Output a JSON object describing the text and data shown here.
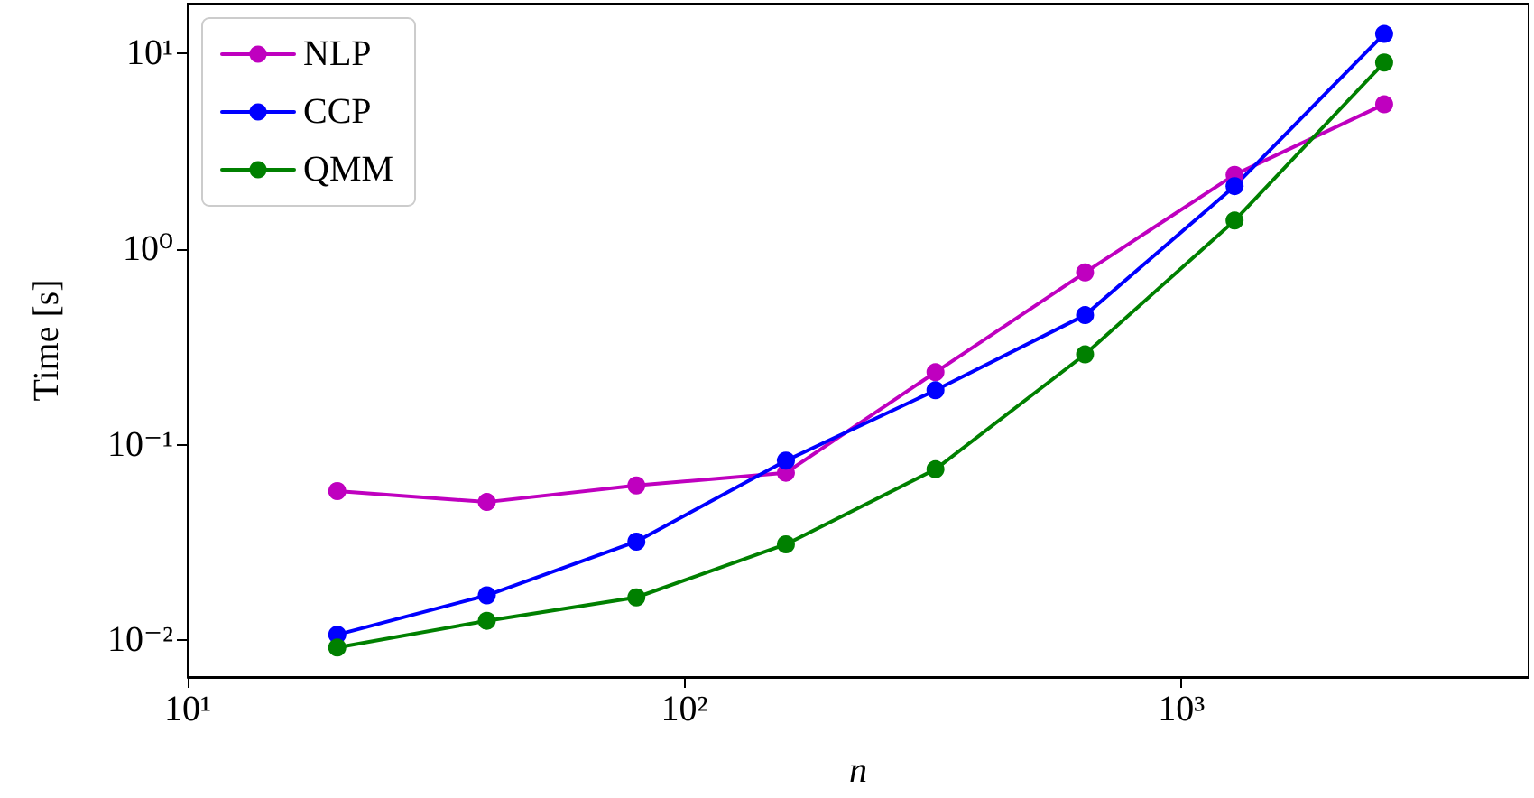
{
  "chart_data": {
    "type": "line",
    "xlabel": "n",
    "ylabel": "Time [s]",
    "x": [
      20,
      40,
      80,
      160,
      320,
      640,
      1280,
      2560
    ],
    "series": [
      {
        "name": "NLP",
        "color": "#bf00bf",
        "values": [
          0.058,
          0.051,
          0.062,
          0.072,
          0.235,
          0.76,
          2.4,
          5.5
        ]
      },
      {
        "name": "CCP",
        "color": "#0000ff",
        "values": [
          0.0107,
          0.017,
          0.032,
          0.083,
          0.19,
          0.46,
          2.1,
          12.6
        ]
      },
      {
        "name": "QMM",
        "color": "#008000",
        "values": [
          0.0092,
          0.0126,
          0.0166,
          0.031,
          0.075,
          0.29,
          1.4,
          9.0
        ]
      }
    ],
    "log": "xy",
    "xlim": [
      10,
      5000
    ],
    "ylim": [
      0.0065,
      18
    ],
    "xticks": [
      {
        "value": 10,
        "label": "10¹"
      },
      {
        "value": 100,
        "label": "10²"
      },
      {
        "value": 1000,
        "label": "10³"
      }
    ],
    "yticks": [
      {
        "value": 0.01,
        "label": "10⁻²"
      },
      {
        "value": 0.1,
        "label": "10⁻¹"
      },
      {
        "value": 1,
        "label": "10⁰"
      },
      {
        "value": 10,
        "label": "10¹"
      }
    ],
    "grid": false,
    "legend": "top left",
    "marker": "circle",
    "line_style": "solid"
  }
}
